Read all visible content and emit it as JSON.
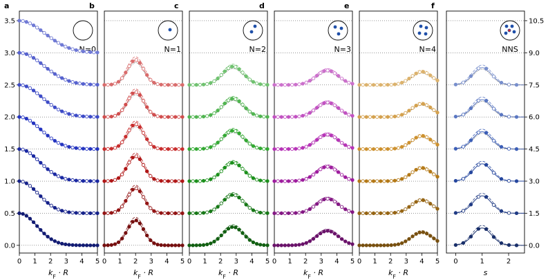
{
  "colors": {
    "blue": "#1f2fbf",
    "red": "#c41a1a",
    "green": "#1fa01f",
    "magenta": "#b020b0",
    "orange": "#c8861a",
    "nns": "#2a4fb0",
    "gridline": "#555555"
  },
  "panels": [
    {
      "letter": "a",
      "xlabel_main": "k",
      "xlabel_sub": "F",
      "xlabel_tail": "· R",
      "inset_label": "N=0",
      "dots": 0
    },
    {
      "letter": "b",
      "xlabel_main": "k",
      "xlabel_sub": "F",
      "xlabel_tail": "· R",
      "inset_label": "N=1",
      "dots": 1
    },
    {
      "letter": "c",
      "xlabel_main": "k",
      "xlabel_sub": "F",
      "xlabel_tail": "· R",
      "inset_label": "N=2",
      "dots": 2
    },
    {
      "letter": "d",
      "xlabel_main": "k",
      "xlabel_sub": "F",
      "xlabel_tail": "· R",
      "inset_label": "N=3",
      "dots": 3
    },
    {
      "letter": "e",
      "xlabel_main": "k",
      "xlabel_sub": "F",
      "xlabel_tail": "· R",
      "inset_label": "N=4",
      "dots": 4
    },
    {
      "letter": "f",
      "xlabel_main": "s",
      "xlabel_sub": "",
      "xlabel_tail": "",
      "inset_label": "NNS",
      "dots": 5
    }
  ],
  "chart_data": {
    "type": "line",
    "left_axis": {
      "ylim": [
        -0.12,
        3.65
      ],
      "ticks": [
        "0.0",
        "0.5",
        "1.0",
        "1.5",
        "2.0",
        "2.5",
        "3.0",
        "3.5"
      ]
    },
    "right_axis": {
      "ticks": [
        "0.0",
        "1.5",
        "3.0",
        "4.5",
        "6.0",
        "7.5",
        "9.0",
        "10.5"
      ]
    },
    "x_axis": {
      "xlim": [
        0,
        5
      ],
      "ticks": [
        "0",
        "1",
        "2",
        "3",
        "4",
        "5"
      ]
    },
    "s_axis": {
      "xlim": [
        -0.35,
        2.6
      ],
      "ticks": [
        "0",
        "1",
        "2"
      ]
    },
    "offsets": [
      0,
      0.5,
      1.0,
      1.5,
      2.0,
      2.5
    ],
    "panel_a_offsets": [
      0,
      0.5,
      1.0,
      1.5,
      2.0,
      2.5,
      3.0
    ],
    "series": [
      {
        "panel": "a",
        "shape": "decay",
        "curves": 7
      },
      {
        "panel": "b",
        "shape": "peak",
        "center": 2.0,
        "width": 0.75,
        "amp": 0.38,
        "curves": 6
      },
      {
        "panel": "c",
        "shape": "peak",
        "center": 2.8,
        "width": 0.95,
        "amp": 0.28,
        "curves": 6
      },
      {
        "panel": "d",
        "shape": "peak",
        "center": 3.4,
        "width": 1.0,
        "amp": 0.22,
        "curves": 6
      },
      {
        "panel": "e",
        "shape": "peak",
        "center": 4.0,
        "width": 0.95,
        "amp": 0.2,
        "curves": 6
      },
      {
        "panel": "f",
        "shape": "peak",
        "center": 1.0,
        "width": 0.5,
        "amp": 0.27,
        "curves": 6
      }
    ]
  }
}
